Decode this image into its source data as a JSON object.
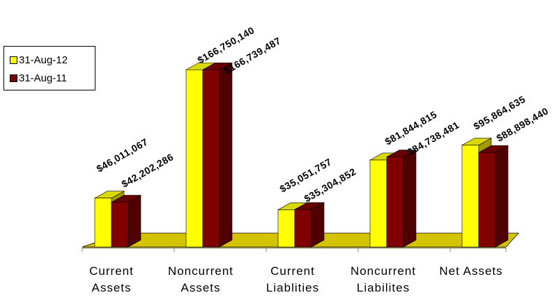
{
  "chart_data": {
    "type": "bar",
    "categories": [
      [
        "Current",
        "Assets"
      ],
      [
        "Noncurrent",
        "Assets"
      ],
      [
        "Current",
        "Liablities"
      ],
      [
        "Noncurrent",
        "Liabilites"
      ],
      [
        "Net Assets"
      ]
    ],
    "series": [
      {
        "name": "31-Aug-12",
        "color": "#ffff00",
        "values": [
          46011067,
          166750140,
          35051757,
          81844815,
          95864635
        ],
        "labels": [
          "$46,011,067",
          "$166,750,140",
          "$35,051,757",
          "$81,844,815",
          "$95,864,635"
        ]
      },
      {
        "name": "31-Aug-11",
        "color": "#800000",
        "values": [
          42202286,
          166739487,
          35304852,
          84738481,
          88898440
        ],
        "labels": [
          "$42,202,286",
          "$166,739,487",
          "$35,304,852",
          "$84,738,481",
          "$88,898,440"
        ]
      }
    ],
    "ylim": [
      0,
      180000000
    ],
    "legend_position": "left",
    "grid": false,
    "floor_color": "#d4c400"
  }
}
